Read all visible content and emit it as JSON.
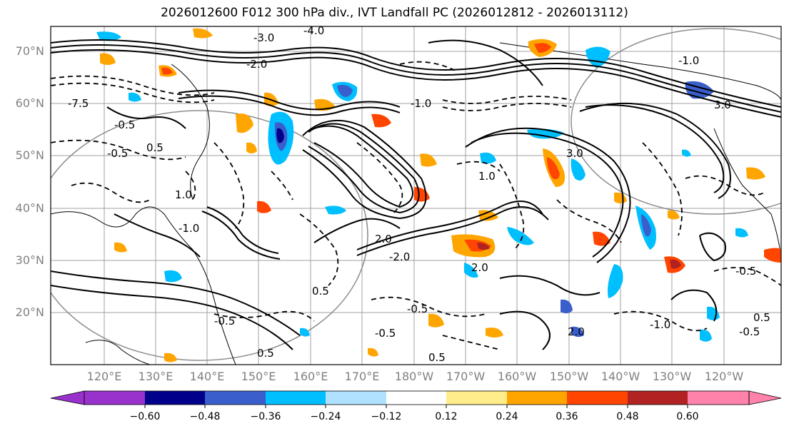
{
  "title": "2026012600 F012 300 hPa div., IVT Landfall PC (2026012812 - 2026013112)",
  "lat_labels": [
    "70°N",
    "60°N",
    "50°N",
    "40°N",
    "30°N",
    "20°N"
  ],
  "lon_labels": [
    "120°E",
    "130°E",
    "140°E",
    "150°E",
    "160°E",
    "170°E",
    "180°W",
    "170°W",
    "160°W",
    "150°W",
    "140°W",
    "130°W",
    "120°W"
  ],
  "colorbar": {
    "ticks": [
      "−0.60",
      "−0.48",
      "−0.36",
      "−0.24",
      "−0.12",
      "0.12",
      "0.24",
      "0.36",
      "0.48",
      "0.60"
    ],
    "colors": [
      "#9932CC",
      "#00008B",
      "#3A5FCD",
      "#00BFFF",
      "#B0E2FF",
      "#FFFFFF",
      "#FFEC8B",
      "#FFA500",
      "#FF4500",
      "#B22222",
      "#FF82AB"
    ]
  },
  "contour_labels": [
    "-3.0",
    "-4.0",
    "-2.0",
    "-1.0",
    "-0.5",
    "0.5",
    "1.0",
    "2.0",
    "3.0",
    "-7.5",
    "0.5",
    "-0.5",
    "-1.0",
    "1.0",
    "-2.0",
    "-0.5",
    "0.5",
    "-0.5",
    "2.0",
    "-1.0",
    "-0.5",
    "0.5",
    "2.0",
    "-0.5",
    "0.5",
    "-1.0",
    "3.0",
    "-0.5"
  ]
}
